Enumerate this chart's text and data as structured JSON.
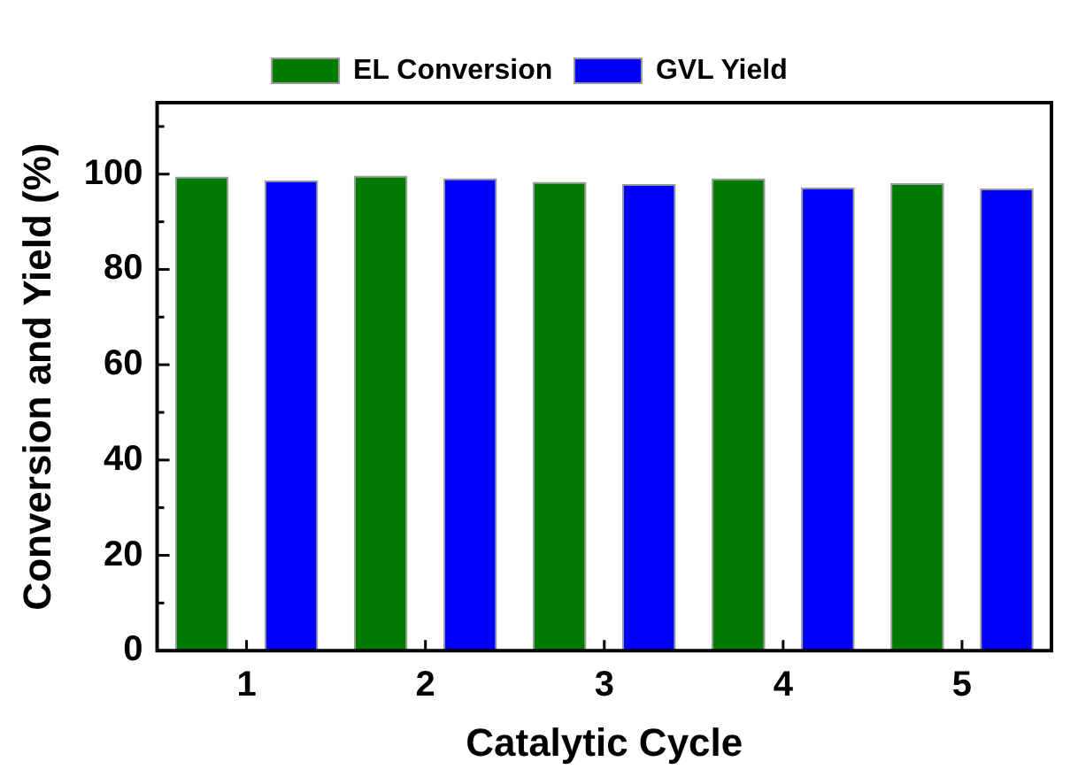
{
  "chart_data": {
    "type": "bar",
    "xlabel": "Catalytic Cycle",
    "ylabel": "Conversion and Yield (%)",
    "categories": [
      "1",
      "2",
      "3",
      "4",
      "5"
    ],
    "series": [
      {
        "name": "EL Conversion",
        "color": "#007a00",
        "values": [
          99.5,
          99.7,
          98.4,
          99.1,
          98.1
        ]
      },
      {
        "name": "GVL Yield",
        "color": "#0000ff",
        "values": [
          98.7,
          99.1,
          97.9,
          97.2,
          97.0
        ]
      }
    ],
    "ylim": [
      0,
      115
    ],
    "yticks": [
      0,
      20,
      40,
      60,
      80,
      100
    ],
    "grid": false,
    "legend": "top"
  }
}
